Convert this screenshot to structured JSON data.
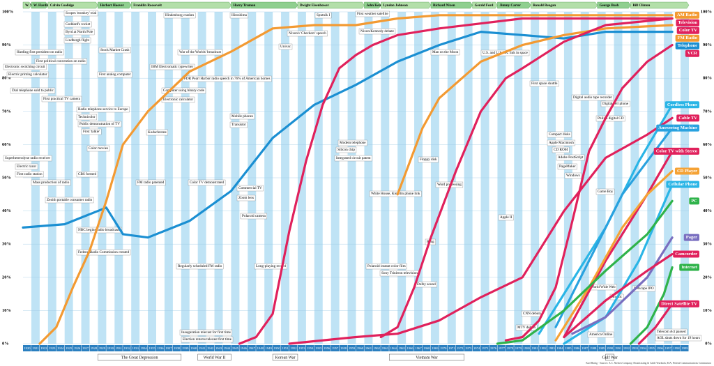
{
  "chart_data": {
    "type": "line",
    "xlim": [
      1920,
      2000
    ],
    "ylim": [
      0,
      100
    ],
    "xticks": [
      1920,
      1921,
      1922,
      1923,
      1924,
      1925,
      1926,
      1927,
      1928,
      1929,
      1930,
      1931,
      1932,
      1933,
      1934,
      1935,
      1936,
      1937,
      1938,
      1939,
      1940,
      1941,
      1942,
      1943,
      1944,
      1945,
      1946,
      1947,
      1948,
      1949,
      1950,
      1951,
      1952,
      1953,
      1954,
      1955,
      1956,
      1957,
      1958,
      1959,
      1960,
      1961,
      1962,
      1963,
      1964,
      1965,
      1966,
      1967,
      1968,
      1969,
      1970,
      1971,
      1972,
      1973,
      1974,
      1975,
      1976,
      1977,
      1978,
      1979,
      1980,
      1981,
      1982,
      1983,
      1984,
      1985,
      1986,
      1987,
      1988,
      1989,
      1990,
      1991,
      1992,
      1993,
      1994,
      1995,
      1996,
      1997,
      1998,
      1999
    ],
    "yticks": [
      {
        "value": 0,
        "label": "0%"
      },
      {
        "value": 10,
        "label": "10%"
      },
      {
        "value": 20,
        "label": "20%"
      },
      {
        "value": 30,
        "label": "30%"
      },
      {
        "value": 40,
        "label": "40%"
      },
      {
        "value": 50,
        "label": "50%"
      },
      {
        "value": 60,
        "label": "60%"
      },
      {
        "value": 70,
        "label": "70%"
      },
      {
        "value": 80,
        "label": "80%"
      },
      {
        "value": 90,
        "label": "90%"
      },
      {
        "value": 100,
        "label": "100%"
      }
    ],
    "presidents": [
      {
        "name": "W. W.",
        "start": 1920,
        "end": 1921
      },
      {
        "name": "W. Harding",
        "start": 1921,
        "end": 1923
      },
      {
        "name": "Calvin Coolidge",
        "start": 1923,
        "end": 1929
      },
      {
        "name": "Herbert Hoover",
        "start": 1929,
        "end": 1933
      },
      {
        "name": "Franklin Roosevelt",
        "start": 1933,
        "end": 1945
      },
      {
        "name": "Harry Truman",
        "start": 1945,
        "end": 1953
      },
      {
        "name": "Dwight Eisenhower",
        "start": 1953,
        "end": 1961
      },
      {
        "name": "John Kennedy",
        "start": 1961,
        "end": 1963
      },
      {
        "name": "Lyndon Johnson",
        "start": 1963,
        "end": 1969
      },
      {
        "name": "Richard Nixon",
        "start": 1969,
        "end": 1974
      },
      {
        "name": "Gerald Ford",
        "start": 1974,
        "end": 1977
      },
      {
        "name": "Jimmy Carter",
        "start": 1977,
        "end": 1981
      },
      {
        "name": "Ronald Reagan",
        "start": 1981,
        "end": 1989
      },
      {
        "name": "George Bush",
        "start": 1989,
        "end": 1993
      },
      {
        "name": "Bill Clinton",
        "start": 1993,
        "end": 2000
      }
    ],
    "events": [
      {
        "name": "The Great Depression",
        "start": 1929,
        "end": 1939
      },
      {
        "name": "World War II",
        "start": 1941,
        "end": 1945
      },
      {
        "name": "Korean War",
        "start": 1950,
        "end": 1953
      },
      {
        "name": "Vietnam War",
        "start": 1964,
        "end": 1973
      },
      {
        "name": "Gulf War",
        "start": 1990,
        "end": 1991
      }
    ],
    "series": [
      {
        "name": "Telephone",
        "color": "#1b8fd2",
        "x": [
          1920,
          1925,
          1930,
          1932,
          1935,
          1940,
          1945,
          1950,
          1955,
          1960,
          1965,
          1970,
          1975,
          1980,
          1985,
          1990,
          1998
        ],
        "values": [
          35,
          36,
          41,
          33,
          32,
          37,
          46,
          62,
          72,
          78,
          85,
          90,
          94,
          93,
          92,
          94,
          94
        ]
      },
      {
        "name": "AM Radio",
        "color": "#f39a32",
        "x": [
          1922,
          1924,
          1926,
          1928,
          1930,
          1932,
          1935,
          1940,
          1945,
          1950,
          1955,
          1960,
          1965,
          1970,
          1980,
          1998
        ],
        "values": [
          0,
          5,
          17,
          28,
          43,
          60,
          70,
          82,
          88,
          95,
          96,
          96,
          98,
          99,
          99,
          99
        ]
      },
      {
        "name": "FM Radio",
        "color": "#f39a32",
        "x": [
          1965,
          1968,
          1970,
          1975,
          1980,
          1985,
          1990,
          1998
        ],
        "values": [
          45,
          65,
          74,
          85,
          90,
          93,
          95,
          96
        ]
      },
      {
        "name": "Television",
        "color": "#e0215c",
        "x": [
          1946,
          1948,
          1950,
          1952,
          1954,
          1956,
          1958,
          1960,
          1962,
          1965,
          1970,
          1980,
          1998
        ],
        "values": [
          0,
          2,
          9,
          34,
          55,
          72,
          83,
          87,
          90,
          93,
          95,
          98,
          98
        ]
      },
      {
        "name": "Color TV",
        "color": "#e0215c",
        "x": [
          1963,
          1965,
          1967,
          1969,
          1972,
          1975,
          1978,
          1980,
          1985,
          1990,
          1998
        ],
        "values": [
          2,
          5,
          17,
          32,
          52,
          70,
          80,
          83,
          91,
          96,
          98
        ]
      },
      {
        "name": "VCR",
        "color": "#e0215c",
        "x": [
          1978,
          1980,
          1982,
          1984,
          1986,
          1988,
          1990,
          1992,
          1995,
          1998
        ],
        "values": [
          1,
          2,
          7,
          17,
          37,
          58,
          68,
          77,
          85,
          90
        ]
      },
      {
        "name": "Cordless Phone",
        "color": "#2ab5e6",
        "x": [
          1982,
          1985,
          1990,
          1994,
          1998
        ],
        "values": [
          3,
          15,
          35,
          55,
          72
        ]
      },
      {
        "name": "Cable TV",
        "color": "#e0215c",
        "x": [
          1952,
          1960,
          1965,
          1970,
          1975,
          1980,
          1985,
          1990,
          1995,
          1998
        ],
        "values": [
          0,
          2,
          3,
          7,
          14,
          20,
          40,
          56,
          63,
          68
        ]
      },
      {
        "name": "Answering Machine",
        "color": "#29a2df",
        "x": [
          1984,
          1988,
          1992,
          1995,
          1998
        ],
        "values": [
          5,
          25,
          45,
          55,
          65
        ]
      },
      {
        "name": "Color TV with Stereo",
        "color": "#e0215c",
        "x": [
          1985,
          1990,
          1995,
          1998
        ],
        "values": [
          2,
          25,
          45,
          58
        ]
      },
      {
        "name": "CD Player",
        "color": "#f5a234",
        "x": [
          1984,
          1988,
          1992,
          1995,
          1998
        ],
        "values": [
          1,
          17,
          35,
          45,
          52
        ]
      },
      {
        "name": "Cellular Phone",
        "color": "#2ab5e6",
        "x": [
          1985,
          1990,
          1994,
          1998
        ],
        "values": [
          0,
          8,
          25,
          48
        ]
      },
      {
        "name": "PC",
        "color": "#2fb34a",
        "x": [
          1977,
          1980,
          1985,
          1990,
          1995,
          1998
        ],
        "values": [
          0,
          1,
          10,
          22,
          33,
          43
        ]
      },
      {
        "name": "Pager",
        "color": "#7a6fc0",
        "x": [
          1986,
          1990,
          1995,
          1998
        ],
        "values": [
          3,
          8,
          20,
          32
        ]
      },
      {
        "name": "Camcorder",
        "color": "#e0215c",
        "x": [
          1985,
          1990,
          1995,
          1998
        ],
        "values": [
          2,
          13,
          22,
          27
        ]
      },
      {
        "name": "Internet",
        "color": "#2fb34a",
        "x": [
          1993,
          1995,
          1997,
          1998
        ],
        "values": [
          0,
          5,
          15,
          23
        ]
      },
      {
        "name": "Direct Satellite TV",
        "color": "#e0215c",
        "x": [
          1994,
          1996,
          1998
        ],
        "values": [
          0,
          5,
          12
        ]
      }
    ],
    "annotations": [
      "Scopes 'monkey' trial",
      "Goddard's rocket",
      "Byrd at North Pole",
      "Lindbergh flight",
      "Stock Market Crash",
      "Harding first president on radio",
      "First political convention on radio",
      "Electronic switching circuit",
      "Electric printing calculator",
      "First analog computer",
      "Hindenburg crashes",
      "War of the Worlds' broadcast",
      "IBM Electromatic typewriter",
      "FDR Pearl Harbor radio speech in 76% of American homes",
      "Computer using binary code",
      "Electronic calculator",
      "Dial telephone sold to public",
      "First practical TV camera",
      "Hiroshima",
      "Sputnik I",
      "First weather satellite",
      "Nixon's 'Checkers' speech",
      "Nixon/Kennedy debate",
      "Univac",
      "Mobile phones",
      "Transistor",
      "Man on the Moon",
      "U.S. and U.S.S.R. link in space",
      "First space shuttle",
      "Digital audio tape recorder",
      "Digital cell phone",
      "Philips digital CD",
      "Compact disks",
      "Apple Macintosh",
      "CD ROM",
      "Adobe PostScript",
      "PageMaker",
      "Windows",
      "Game Boy",
      "World Wide Web",
      "Mosaic",
      "Netscape IPO",
      "America Online",
      "Telecom Act passed",
      "AOL shuts down for 19 hours",
      "Pong",
      "Floppy disk",
      "Word processing",
      "Apple II",
      "CNN debuts",
      "MTV debuts",
      "Sony Trinitron television",
      "Polaroid instant color film",
      "Dolby sound",
      "White House, Kremlin phone link",
      "Modem telephone",
      "Silicon chip",
      "Integrated circuit patent",
      "Commercial TV",
      "Zoom lens",
      "Polaroid camera",
      "Long-playing record",
      "Regularly scheduled FM radio",
      "Federal Radio Commission created",
      "NBC begins radio broadcasts",
      "Zenith portable consumer radio",
      "Superheterodyne radio receiver",
      "Electric razor",
      "First radio station",
      "Mass production of radio",
      "Radio telephone service to Europe",
      "Technicolor",
      "Public demonstration of TV",
      "First 'talkie'",
      "Color movies",
      "CBS formed",
      "FM radio patented",
      "Kodachrome",
      "Color TV demonstrated",
      "Inauguration telecast for first time",
      "Election returns telecast first time"
    ],
    "source": "Karl Hartig · Sources: A.C. Nielsen Company; Broadcasting & Cable Yearbook; EIA; Federal Communications Commission"
  }
}
